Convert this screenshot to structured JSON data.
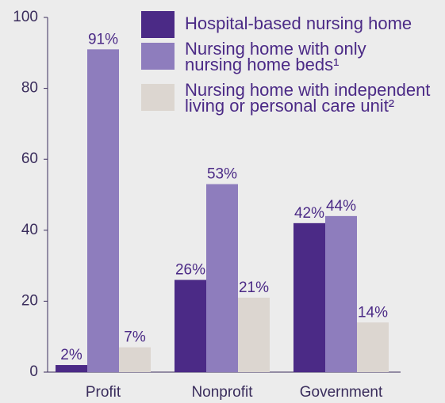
{
  "chart_data": {
    "type": "bar",
    "categories": [
      "Profit",
      "Nonprofit",
      "Government"
    ],
    "series": [
      {
        "name": "Hospital-based nursing home",
        "color": "#4b2a86",
        "values": [
          2,
          26,
          42
        ],
        "value_labels": [
          "2%",
          "26%",
          "42%"
        ]
      },
      {
        "name": "Nursing home with only nursing home beds¹",
        "color": "#8e7dbd",
        "values": [
          91,
          53,
          44
        ],
        "value_labels": [
          "91%",
          "53%",
          "44%"
        ]
      },
      {
        "name": "Nursing home with independent living or personal care unit²",
        "color": "#dcd6d0",
        "values": [
          7,
          21,
          14
        ],
        "value_labels": [
          "7%",
          "21%",
          "14%"
        ]
      }
    ],
    "ylim": [
      0,
      100
    ],
    "yticks": [
      0,
      20,
      40,
      60,
      80,
      100
    ]
  }
}
